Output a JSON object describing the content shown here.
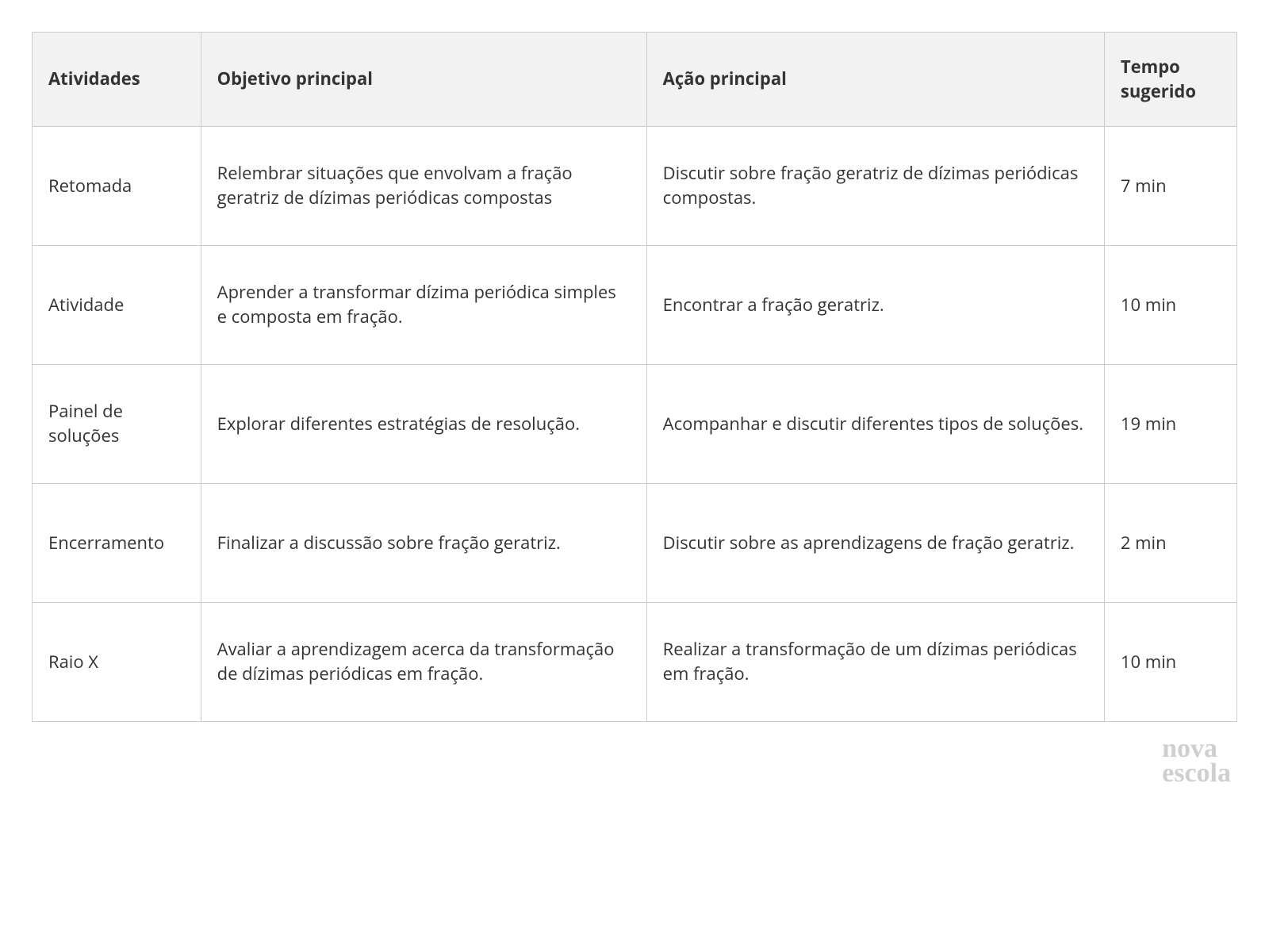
{
  "table": {
    "type": "table",
    "header_bg": "#f2f2f2",
    "border_color": "#cccccc",
    "text_color": "#333333",
    "font_size_pt": 16,
    "header_font_weight": 700,
    "columns": [
      {
        "key": "atividades",
        "label": "Atividades",
        "width_pct": 14
      },
      {
        "key": "objetivo",
        "label": "Objetivo principal",
        "width_pct": 37
      },
      {
        "key": "acao",
        "label": "Ação principal",
        "width_pct": 38
      },
      {
        "key": "tempo",
        "label": "Tempo sugerido",
        "width_pct": 11
      }
    ],
    "rows": [
      {
        "atividades": "Retomada",
        "objetivo": "Relembrar situações que envolvam a fração geratriz de dízimas periódicas compostas",
        "acao": "Discutir sobre fração geratriz de dízimas periódicas compostas.",
        "tempo": "7 min"
      },
      {
        "atividades": "Atividade",
        "objetivo": "Aprender a transformar dízima periódica simples e composta em fração.",
        "acao": "Encontrar a fração geratriz.",
        "tempo": "10 min"
      },
      {
        "atividades": "Painel de soluções",
        "objetivo": "Explorar diferentes estratégias de resolução.",
        "acao": "Acompanhar e discutir diferentes tipos de soluções.",
        "tempo": "19 min"
      },
      {
        "atividades": "Encerramento",
        "objetivo": "Finalizar a discussão sobre fração geratriz.",
        "acao": "Discutir sobre as aprendizagens de fração geratriz.",
        "tempo": "2 min"
      },
      {
        "atividades": "Raio X",
        "objetivo": "Avaliar a aprendizagem acerca da transformação de dízimas periódicas em fração.",
        "acao": "Realizar a transformação de um dízimas periódicas em fração.",
        "tempo": "10 min"
      }
    ]
  },
  "logo": {
    "line1": "nova",
    "line2": "escola",
    "color": "#cfcfcf",
    "font_family": "Georgia",
    "font_size_pt": 26,
    "font_weight": 700
  }
}
